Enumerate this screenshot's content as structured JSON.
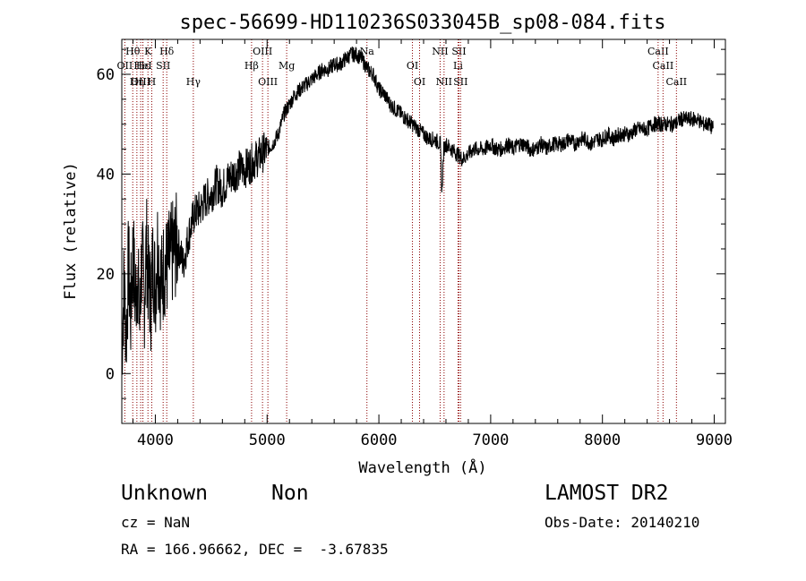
{
  "chart_data": {
    "type": "line",
    "title": "spec-56699-HD110236S033045B_sp08-084.fits",
    "xlabel": "Wavelength (Å)",
    "ylabel": "Flux (relative)",
    "xlim": [
      3700,
      9100
    ],
    "ylim": [
      -10,
      67
    ],
    "x_ticks": [
      4000,
      5000,
      6000,
      7000,
      8000,
      9000
    ],
    "y_ticks": [
      0,
      20,
      40,
      60
    ],
    "grid": false,
    "line_color": "#000000",
    "marker_color": "#8b0000",
    "series": [
      {
        "x": [
          3700,
          3720,
          3740,
          3760,
          3780,
          3800,
          3820,
          3840,
          3860,
          3880,
          3900,
          3920,
          3940,
          3960,
          3980,
          4000,
          4020,
          4040,
          4060,
          4080,
          4100,
          4150,
          4200,
          4250,
          4300,
          4350,
          4400,
          4450,
          4500,
          4550,
          4600,
          4650,
          4700,
          4750,
          4800,
          4850,
          4900,
          4950,
          5000,
          5050,
          5100,
          5150,
          5200,
          5250,
          5300,
          5350,
          5400,
          5450,
          5500,
          5550,
          5600,
          5650,
          5700,
          5750,
          5800,
          5850,
          5900,
          5950,
          6000,
          6050,
          6100,
          6150,
          6200,
          6250,
          6300,
          6350,
          6400,
          6450,
          6500,
          6550,
          6563,
          6580,
          6600,
          6650,
          6700,
          6750,
          6800,
          6850,
          6900,
          6950,
          7000,
          7050,
          7100,
          7150,
          7200,
          7250,
          7300,
          7350,
          7400,
          7450,
          7500,
          7550,
          7600,
          7650,
          7700,
          7750,
          7800,
          7850,
          7900,
          7950,
          8000,
          8050,
          8100,
          8150,
          8200,
          8250,
          8300,
          8350,
          8400,
          8450,
          8500,
          8550,
          8600,
          8650,
          8700,
          8750,
          8800,
          8850,
          8900,
          8950,
          8990
        ],
        "y": [
          5,
          18,
          8,
          22,
          12,
          25,
          15,
          20,
          10,
          24,
          14,
          26,
          18,
          15,
          23,
          17,
          26,
          20,
          18,
          22,
          21,
          24,
          26,
          22,
          28,
          32,
          33,
          35,
          36,
          38,
          37,
          39,
          40,
          41,
          41,
          42,
          43,
          44,
          45,
          46,
          48,
          52,
          54,
          56,
          57,
          58,
          59,
          60,
          61,
          61,
          62,
          62,
          63,
          64,
          64,
          63,
          61,
          60,
          57,
          56,
          54,
          53,
          52,
          51,
          50,
          49,
          48,
          47,
          47,
          46,
          36,
          45,
          46,
          45,
          44,
          43,
          44,
          45,
          45,
          45,
          46,
          45,
          45,
          46,
          45,
          46,
          46,
          45,
          45,
          46,
          45,
          46,
          46,
          46,
          47,
          46,
          47,
          47,
          46,
          47,
          47,
          48,
          47,
          48,
          48,
          48,
          49,
          49,
          49,
          50,
          50,
          50,
          50,
          50,
          51,
          51,
          51,
          51,
          50,
          50,
          49
        ]
      }
    ],
    "line_markers": [
      {
        "label": "Hθ",
        "x": 3798,
        "row": 0
      },
      {
        "label": "OII",
        "x": 3727,
        "row": 1
      },
      {
        "label": "OIII",
        "x": 3869,
        "row": 2
      },
      {
        "label": "Hε",
        "x": 3889,
        "row": 1
      },
      {
        "label": "Hη",
        "x": 3835,
        "row": 2
      },
      {
        "label": "K",
        "x": 3934,
        "row": 0
      },
      {
        "label": "HeI",
        "x": 3888,
        "row": 1
      },
      {
        "label": "H",
        "x": 3968,
        "row": 2
      },
      {
        "label": "Hδ",
        "x": 4102,
        "row": 0
      },
      {
        "label": "SII",
        "x": 4070,
        "row": 1
      },
      {
        "label": "Hγ",
        "x": 4340,
        "row": 2
      },
      {
        "label": "OIII",
        "x": 4959,
        "row": 0
      },
      {
        "label": "Hβ",
        "x": 4861,
        "row": 1
      },
      {
        "label": "OIII",
        "x": 5007,
        "row": 2
      },
      {
        "label": "Mg",
        "x": 5175,
        "row": 1
      },
      {
        "label": "Na",
        "x": 5893,
        "row": 0
      },
      {
        "label": "OI",
        "x": 6300,
        "row": 1
      },
      {
        "label": "OI",
        "x": 6364,
        "row": 2
      },
      {
        "label": "NII",
        "x": 6548,
        "row": 0
      },
      {
        "label": "NII",
        "x": 6583,
        "row": 2
      },
      {
        "label": "SII",
        "x": 6716,
        "row": 0
      },
      {
        "label": "Li",
        "x": 6708,
        "row": 1
      },
      {
        "label": "SII",
        "x": 6731,
        "row": 2
      },
      {
        "label": "CaII",
        "x": 8498,
        "row": 0
      },
      {
        "label": "CaII",
        "x": 8542,
        "row": 1
      },
      {
        "label": "CaII",
        "x": 8662,
        "row": 2
      }
    ]
  },
  "info": {
    "object_class": "Unknown",
    "subclass": "Non",
    "survey": "LAMOST DR2",
    "redshift": "cz = NaN",
    "obs_date": "Obs-Date: 20140210",
    "coords": "RA = 166.96662, DEC =  -3.67835"
  }
}
